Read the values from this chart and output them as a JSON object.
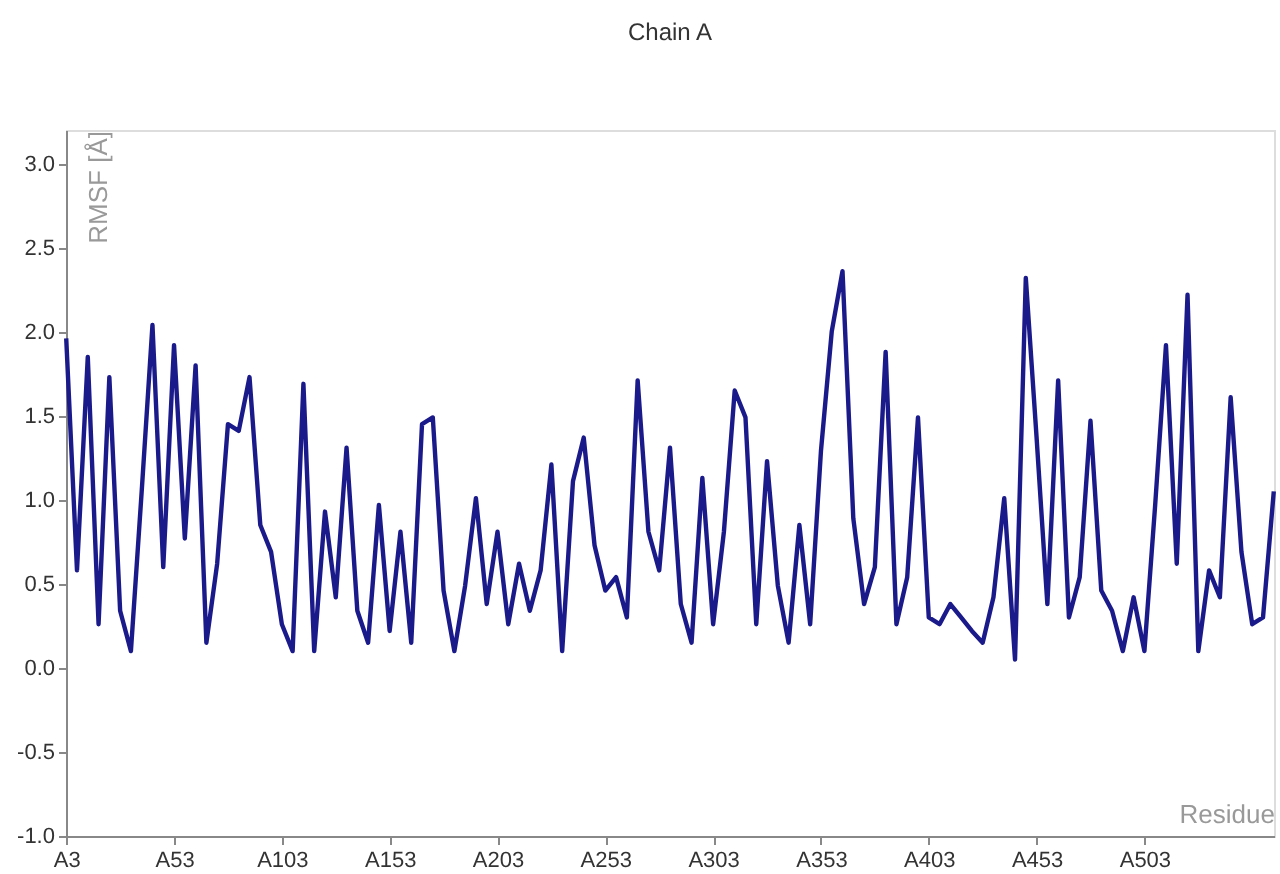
{
  "chart_data": {
    "type": "line",
    "title": "Chain A",
    "xlabel": "Residue",
    "ylabel": "RMSF [Å]",
    "categories": [
      "A3",
      null,
      null,
      null,
      null,
      null,
      null,
      null,
      null,
      null,
      "A53",
      null,
      null,
      null,
      null,
      null,
      null,
      null,
      null,
      null,
      "A103",
      null,
      null,
      null,
      null,
      null,
      null,
      null,
      null,
      null,
      "A153",
      null,
      null,
      null,
      null,
      null,
      null,
      null,
      null,
      null,
      "A203",
      null,
      null,
      null,
      null,
      null,
      null,
      null,
      null,
      null,
      "A253",
      null,
      null,
      null,
      null,
      null,
      null,
      null,
      null,
      null,
      "A303",
      null,
      null,
      null,
      null,
      null,
      null,
      null,
      null,
      null,
      "A353",
      null,
      null,
      null,
      null,
      null,
      null,
      null,
      null,
      null,
      "A403",
      null,
      null,
      null,
      null,
      null,
      null,
      null,
      null,
      null,
      "A453",
      null,
      null,
      null,
      null,
      null,
      null,
      null,
      null,
      null,
      "A503",
      null,
      null,
      null,
      null,
      null,
      null,
      null,
      null,
      null,
      null,
      null,
      null
    ],
    "ylim": [
      -1.0,
      3.2
    ],
    "yticks": [
      {
        "value": -1.0,
        "label": "-1.0"
      },
      {
        "value": -0.5,
        "label": "-0.5"
      },
      {
        "value": 0.0,
        "label": "0.0"
      },
      {
        "value": 0.5,
        "label": "0.5"
      },
      {
        "value": 1.0,
        "label": "1.0"
      },
      {
        "value": 1.5,
        "label": "1.5"
      },
      {
        "value": 2.0,
        "label": "2.0"
      },
      {
        "value": 2.5,
        "label": "2.5"
      },
      {
        "value": 3.0,
        "label": "3.0"
      }
    ],
    "grid": false,
    "marker": "none",
    "line_style": "solid",
    "series": [
      {
        "color": "#1b1a8a",
        "values": [
          1.96,
          0.58,
          1.85,
          0.26,
          1.73,
          0.34,
          0.1,
          1.05,
          2.04,
          0.6,
          1.92,
          0.77,
          1.8,
          0.15,
          0.62,
          1.45,
          1.41,
          1.73,
          0.85,
          0.69,
          0.26,
          0.1,
          1.69,
          0.1,
          0.93,
          0.42,
          1.31,
          0.34,
          0.15,
          0.97,
          0.22,
          0.81,
          0.15,
          1.45,
          1.49,
          0.46,
          0.1,
          0.49,
          1.01,
          0.38,
          0.81,
          0.26,
          0.62,
          0.34,
          0.58,
          1.21,
          0.1,
          1.11,
          1.37,
          0.73,
          0.46,
          0.54,
          0.3,
          1.71,
          0.81,
          0.58,
          1.31,
          0.38,
          0.15,
          1.13,
          0.26,
          0.81,
          1.65,
          1.49,
          0.26,
          1.23,
          0.49,
          0.15,
          0.85,
          0.26,
          1.29,
          2.0,
          2.36,
          0.89,
          0.38,
          0.6,
          1.88,
          0.26,
          0.54,
          1.49,
          0.3,
          0.26,
          0.38,
          0.3,
          0.22,
          0.15,
          0.42,
          1.01,
          0.05,
          2.32,
          1.37,
          0.38,
          1.71,
          0.3,
          0.54,
          1.47,
          0.46,
          0.34,
          0.1,
          0.42,
          0.1,
          0.97,
          1.92,
          0.62,
          2.22,
          0.1,
          0.58,
          0.42,
          1.61,
          0.69,
          0.26,
          0.3,
          1.05
        ]
      }
    ]
  }
}
